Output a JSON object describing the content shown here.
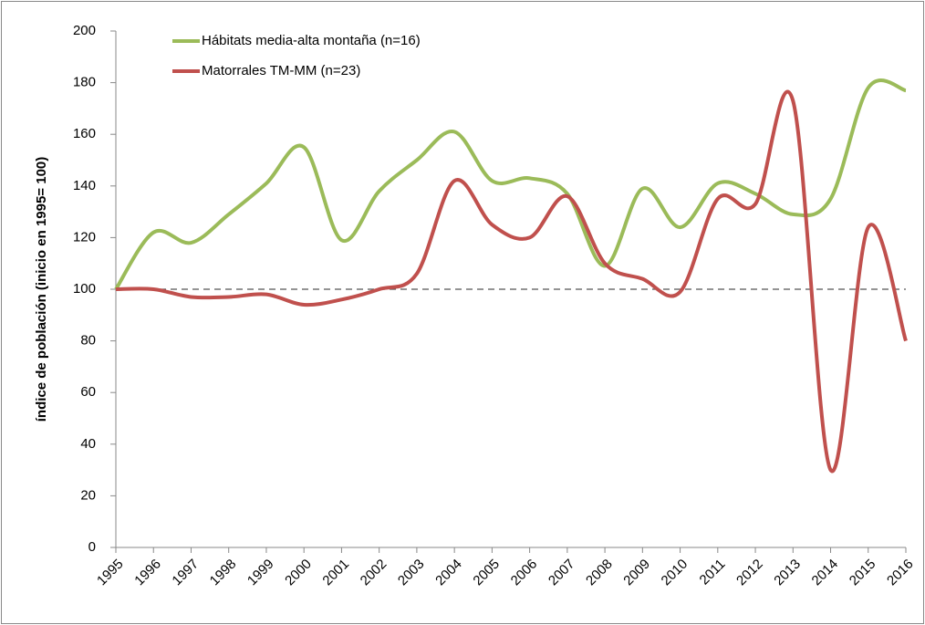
{
  "chart_data": {
    "type": "line",
    "y_label": "índice de población  (inicio en 1995= 100)",
    "categories": [
      "1995",
      "1996",
      "1997",
      "1998",
      "1999",
      "2000",
      "2001",
      "2002",
      "2003",
      "2004",
      "2005",
      "2006",
      "2007",
      "2008",
      "2009",
      "2010",
      "2011",
      "2012",
      "2013",
      "2014",
      "2015",
      "2016"
    ],
    "series": [
      {
        "name": "Hábitats media-alta montaña (n=16)",
        "color": "#9bbb59",
        "values": [
          100,
          122,
          118,
          129,
          141,
          155,
          119,
          138,
          150,
          161,
          142,
          143,
          137,
          109,
          139,
          124,
          141,
          137,
          129,
          135,
          178,
          177
        ]
      },
      {
        "name": "Matorrales TM-MM (n=23)",
        "color": "#c0504d",
        "values": [
          100,
          100,
          97,
          97,
          98,
          94,
          96,
          100,
          106,
          142,
          125,
          120,
          136,
          110,
          104,
          99,
          135,
          133,
          173,
          30,
          124,
          80
        ]
      }
    ],
    "reference_line": 100,
    "ylim": [
      0,
      200
    ],
    "yticks": [
      0,
      20,
      40,
      60,
      80,
      100,
      120,
      140,
      160,
      180,
      200
    ]
  }
}
